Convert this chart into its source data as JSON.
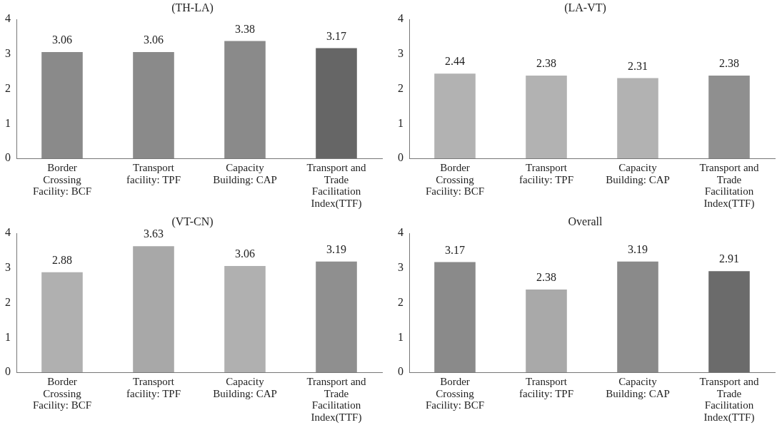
{
  "chart_data": [
    {
      "type": "bar",
      "title": "(TH-LA)",
      "categories": [
        "Border Crossing Facility: BCF",
        "Transport facility: TPF",
        "Capacity Building: CAP",
        "Transport and Trade Facilitation Index(TTF)"
      ],
      "values": [
        3.06,
        3.06,
        3.38,
        3.17
      ],
      "colors": [
        "#8a8a8a",
        "#8a8a8a",
        "#8a8a8a",
        "#666666"
      ],
      "ylim": [
        0,
        4
      ],
      "yticks": [
        0,
        1,
        2,
        3,
        4
      ],
      "grid": false,
      "legend": false,
      "data_labels": true
    },
    {
      "type": "bar",
      "title": "(LA-VT)",
      "categories": [
        "Border Crossing Facility: BCF",
        "Transport facility: TPF",
        "Capacity Building: CAP",
        "Transport and Trade Facilitation Index(TTF)"
      ],
      "values": [
        2.44,
        2.38,
        2.31,
        2.38
      ],
      "colors": [
        "#b2b2b2",
        "#b2b2b2",
        "#b2b2b2",
        "#8f8f8f"
      ],
      "ylim": [
        0,
        4
      ],
      "yticks": [
        0,
        1,
        2,
        3,
        4
      ],
      "grid": false,
      "legend": false,
      "data_labels": true
    },
    {
      "type": "bar",
      "title": "(VT-CN)",
      "categories": [
        "Border Crossing Facility: BCF",
        "Transport facility: TPF",
        "Capacity Building: CAP",
        "Transport and Trade Facilitation Index(TTF)"
      ],
      "values": [
        2.88,
        3.63,
        3.06,
        3.19
      ],
      "colors": [
        "#b0b0b0",
        "#a8a8a8",
        "#b0b0b0",
        "#8f8f8f"
      ],
      "ylim": [
        0,
        4
      ],
      "yticks": [
        0,
        1,
        2,
        3,
        4
      ],
      "grid": false,
      "legend": false,
      "data_labels": true
    },
    {
      "type": "bar",
      "title": "Overall",
      "categories": [
        "Border Crossing Facility: BCF",
        "Transport facility: TPF",
        "Capacity Building: CAP",
        "Transport and Trade Facilitation Index(TTF)"
      ],
      "values": [
        3.17,
        2.38,
        3.19,
        2.91
      ],
      "colors": [
        "#8a8a8a",
        "#a9a9a9",
        "#8a8a8a",
        "#6b6b6b"
      ],
      "ylim": [
        0,
        4
      ],
      "yticks": [
        0,
        1,
        2,
        3,
        4
      ],
      "grid": false,
      "legend": false,
      "data_labels": true
    }
  ]
}
